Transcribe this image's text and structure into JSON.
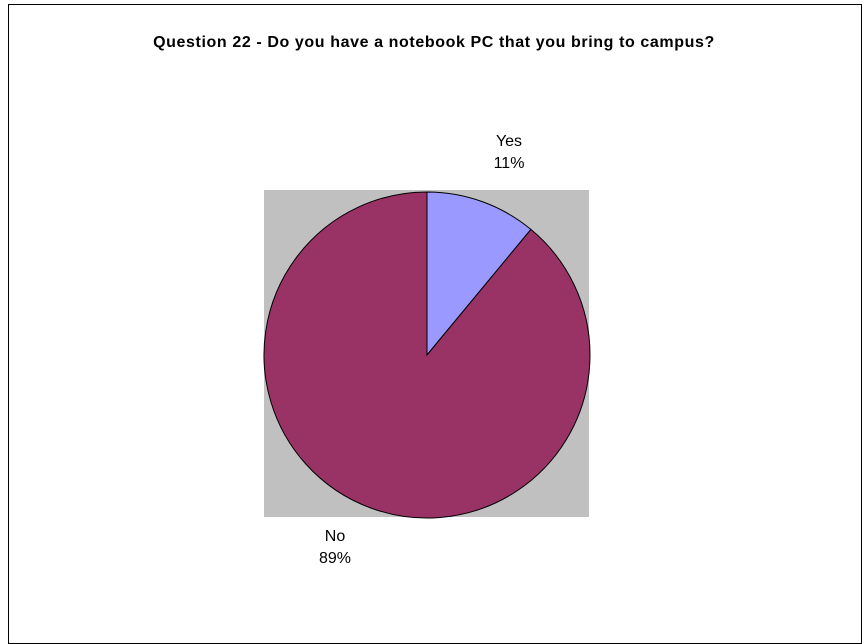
{
  "chart_data": {
    "type": "pie",
    "title": "Question 22 - Do you have a notebook PC that you bring to campus?",
    "slices": [
      {
        "label": "Yes",
        "value": 11,
        "value_label": "11%",
        "color": "#9999ff"
      },
      {
        "label": "No",
        "value": 89,
        "value_label": "89%",
        "color": "#993366"
      }
    ],
    "plot_area_color": "#c0c0c0",
    "legend": "none",
    "start_angle_deg": 0,
    "direction": "clockwise"
  }
}
